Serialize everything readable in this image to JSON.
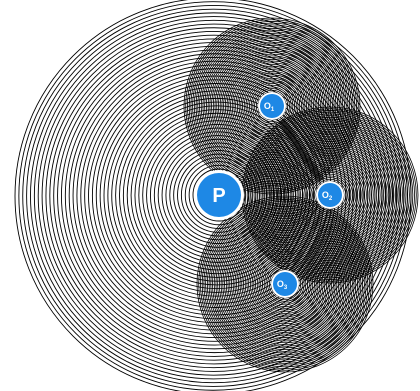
{
  "diagram": {
    "center": {
      "label": "P"
    },
    "sub_labels": [
      "O1",
      "O2",
      "O3"
    ],
    "nodes": [
      {
        "id": "P",
        "label": "P",
        "sub": ""
      },
      {
        "id": "O1",
        "label": "O",
        "sub": "1"
      },
      {
        "id": "O2",
        "label": "O",
        "sub": "2"
      },
      {
        "id": "O3",
        "label": "O",
        "sub": "3"
      }
    ],
    "colors": {
      "node_fill": "#1e88e5",
      "node_stroke": "#ffffff",
      "ring_stroke": "#000000",
      "background": "#ffffff"
    }
  }
}
